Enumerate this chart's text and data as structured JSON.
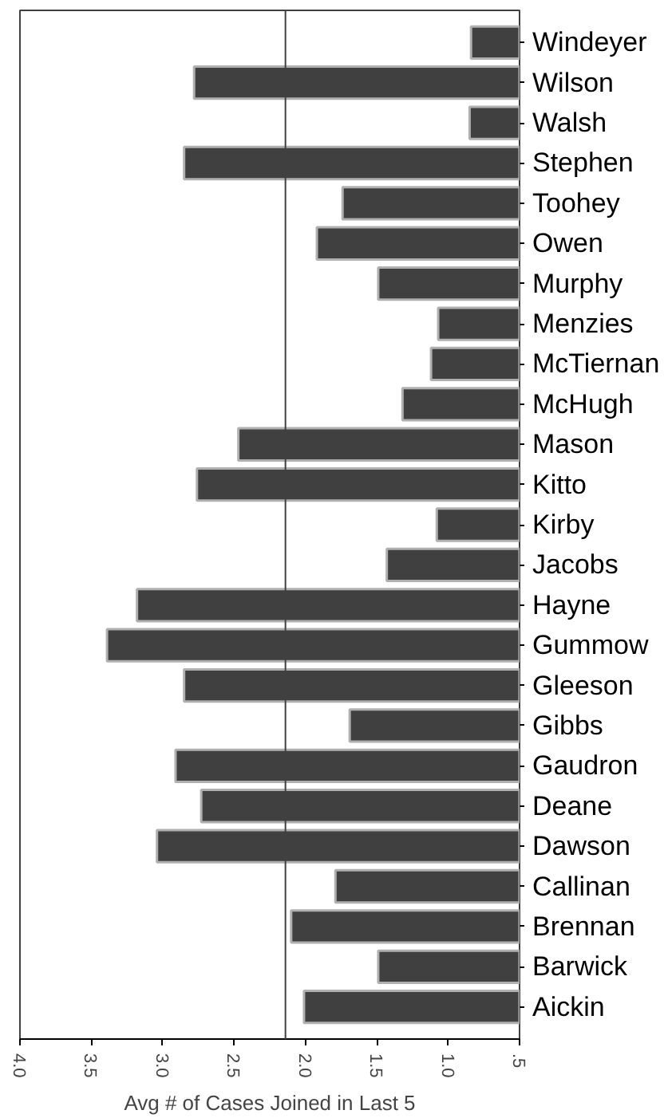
{
  "chart_data": {
    "type": "bar",
    "orientation": "horizontal",
    "xlabel": "Avg # of Cases Joined in Last 5",
    "categories": [
      "Windeyer",
      "Wilson",
      "Walsh",
      "Stephen",
      "Toohey",
      "Owen",
      "Murphy",
      "Menzies",
      "McTiernan",
      "McHugh",
      "Mason",
      "Kitto",
      "Kirby",
      "Jacobs",
      "Hayne",
      "Gummow",
      "Gleeson",
      "Gibbs",
      "Gaudron",
      "Deane",
      "Dawson",
      "Callinan",
      "Brennan",
      "Barwick",
      "Aickin"
    ],
    "values": [
      0.84,
      2.78,
      0.85,
      2.85,
      1.74,
      1.92,
      1.49,
      1.07,
      1.12,
      1.32,
      2.47,
      2.76,
      1.08,
      1.43,
      3.18,
      3.39,
      2.85,
      1.69,
      2.91,
      2.73,
      3.04,
      1.79,
      2.1,
      1.49,
      2.01
    ],
    "color": "#404040",
    "xlim": [
      4.0,
      0.5
    ],
    "xticks": [
      {
        "value": 4.0,
        "label": "4.0"
      },
      {
        "value": 3.5,
        "label": "3.5"
      },
      {
        "value": 3.0,
        "label": "3.0"
      },
      {
        "value": 2.5,
        "label": "2.5"
      },
      {
        "value": 2.0,
        "label": "2.0"
      },
      {
        "value": 1.5,
        "label": "1.5"
      },
      {
        "value": 1.0,
        "label": "1.0"
      },
      {
        "value": 0.5,
        "label": ".5"
      }
    ],
    "ref_lines": [
      {
        "axis": "x",
        "value": 2.14,
        "color": "#404040"
      }
    ],
    "grid": false
  }
}
